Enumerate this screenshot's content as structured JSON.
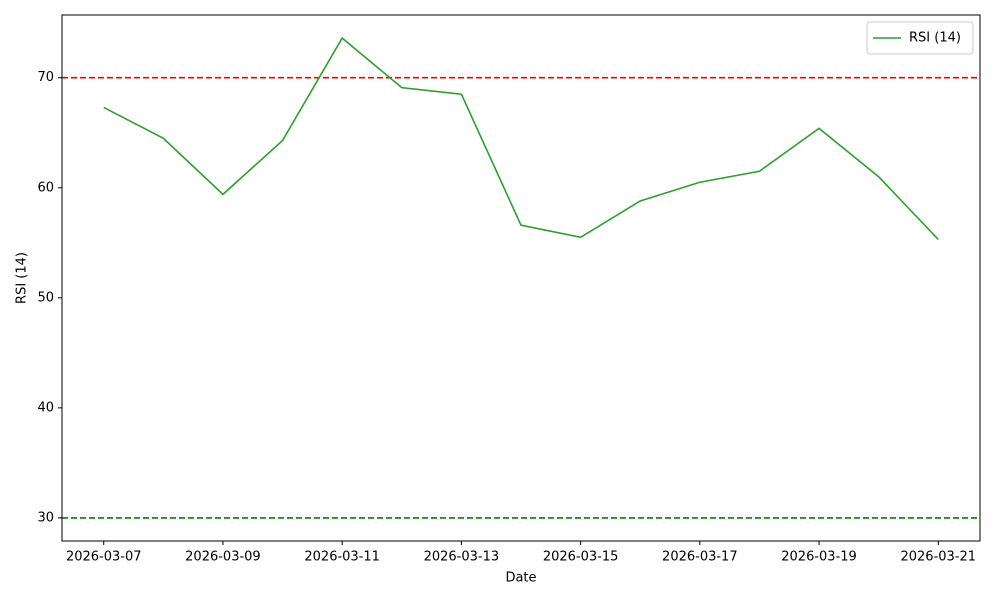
{
  "chart_data": {
    "type": "line",
    "xlabel": "Date",
    "ylabel": "RSI (14)",
    "x": [
      "2026-03-07",
      "2026-03-08",
      "2026-03-09",
      "2026-03-10",
      "2026-03-11",
      "2026-03-12",
      "2026-03-13",
      "2026-03-14",
      "2026-03-15",
      "2026-03-16",
      "2026-03-17",
      "2026-03-18",
      "2026-03-19",
      "2026-03-20",
      "2026-03-21"
    ],
    "series": [
      {
        "name": "RSI (14)",
        "color": "#2ca02c",
        "values": [
          67.3,
          64.5,
          59.4,
          64.3,
          73.6,
          69.1,
          68.5,
          56.6,
          55.5,
          58.8,
          60.5,
          61.5,
          65.4,
          61.0,
          55.3
        ]
      }
    ],
    "hlines": [
      {
        "value": 70,
        "color": "#ff0000"
      },
      {
        "value": 30,
        "color": "#008000"
      }
    ],
    "ylim": [
      27.9,
      75.7
    ],
    "yticks": [
      30,
      40,
      50,
      60,
      70
    ],
    "xticks": [
      "2026-03-07",
      "2026-03-09",
      "2026-03-11",
      "2026-03-13",
      "2026-03-15",
      "2026-03-17",
      "2026-03-19",
      "2026-03-21"
    ],
    "legend": "upper right",
    "grid": false
  }
}
